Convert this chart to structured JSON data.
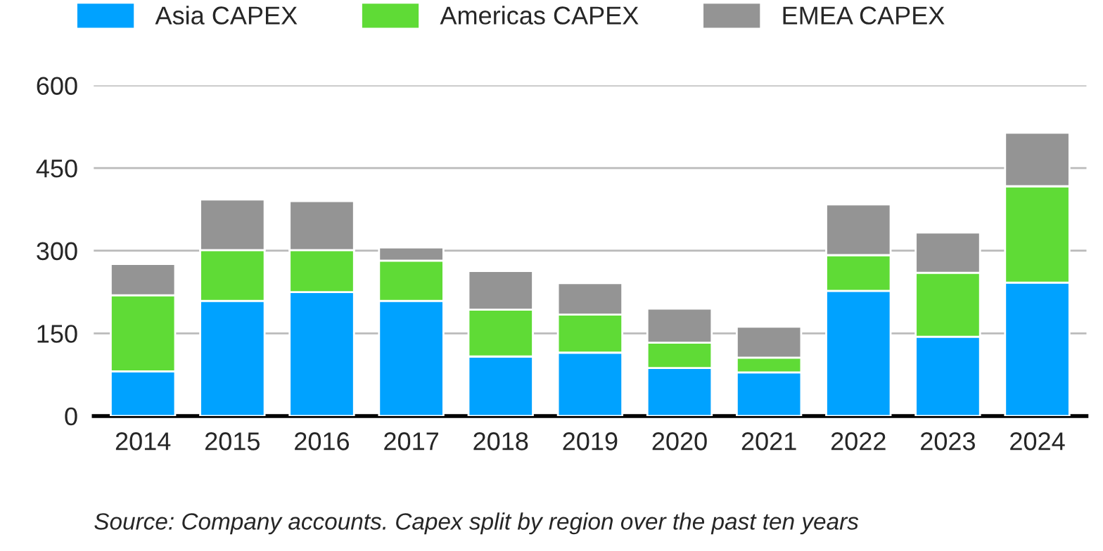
{
  "chart_data": {
    "type": "bar",
    "stacked": true,
    "categories": [
      "2014",
      "2015",
      "2016",
      "2017",
      "2018",
      "2019",
      "2020",
      "2021",
      "2022",
      "2023",
      "2024"
    ],
    "series": [
      {
        "name": "Asia CAPEX",
        "color": "#00a2ff",
        "values": [
          81,
          209,
          225,
          209,
          108,
          115,
          87,
          79,
          227,
          144,
          242
        ]
      },
      {
        "name": "Americas CAPEX",
        "color": "#5fdb36",
        "values": [
          138,
          92,
          76,
          73,
          85,
          69,
          46,
          27,
          65,
          116,
          175
        ]
      },
      {
        "name": "EMEA CAPEX",
        "color": "#949494",
        "values": [
          57,
          92,
          89,
          24,
          70,
          57,
          62,
          56,
          92,
          73,
          97
        ]
      }
    ],
    "ylim": [
      0,
      600
    ],
    "yticks": [
      0,
      150,
      300,
      450,
      600
    ],
    "grid": "y",
    "legend": "top",
    "annotations": [
      "Source: Company accounts. Capex split by region over the past ten years"
    ]
  }
}
